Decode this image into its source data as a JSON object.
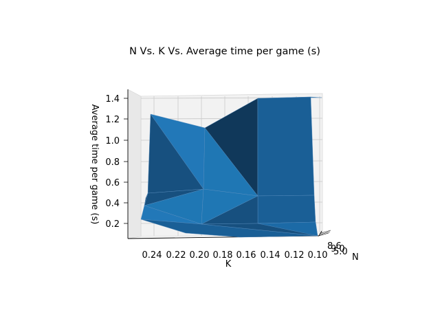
{
  "chart_data": {
    "type": "surface3d",
    "title": "N Vs. K Vs. Average time per game (s)",
    "xlabel": "K",
    "ylabel": "N",
    "zlabel": "Average time per game (s)",
    "x_ticks": [
      "0.24",
      "0.22",
      "0.20",
      "0.18",
      "0.16",
      "0.14",
      "0.12",
      "0.10"
    ],
    "z_ticks": [
      "0.2",
      "0.4",
      "0.6",
      "0.8",
      "1.0",
      "1.2",
      "1.4"
    ],
    "k_values": [
      0.25,
      0.2,
      0.15,
      0.1
    ],
    "z_range": [
      0.1,
      1.4
    ],
    "surface_color": "#1f77b4",
    "grid": true,
    "n_axis_ticks_overlapping": true
  }
}
